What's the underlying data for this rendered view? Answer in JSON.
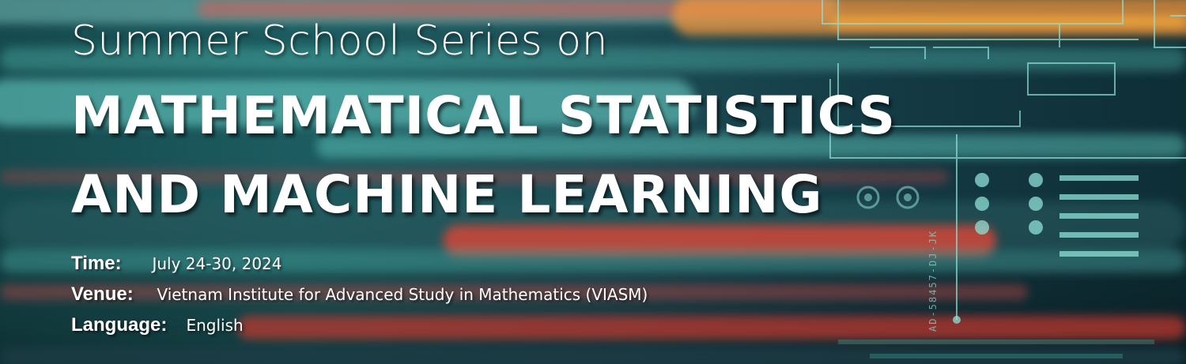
{
  "banner": {
    "subtitle": "Summer School Series on",
    "title_line1": "MATHEMATICAL STATISTICS",
    "title_line2": "AND MACHINE LEARNING",
    "details": [
      {
        "label": "Time:",
        "value": "July 24-30, 2024"
      },
      {
        "label": "Venue:",
        "value": "Vietnam Institute for Advanced Study in Mathematics (VIASM)"
      },
      {
        "label": "Language:",
        "value": "English"
      }
    ],
    "background_code": "AD-58457-DJ-JK"
  },
  "colors": {
    "teal": "#5fd3c5",
    "red": "#e0413a",
    "orange": "#f0a030",
    "text": "#ffffff"
  }
}
